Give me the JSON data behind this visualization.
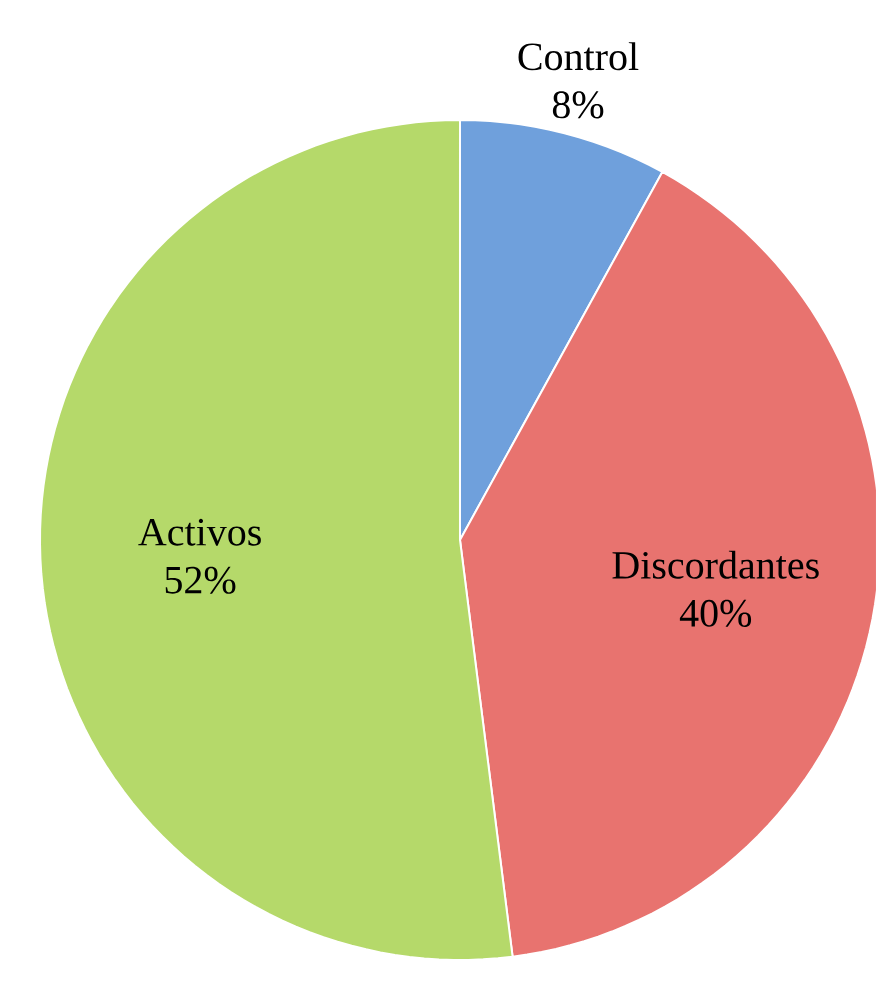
{
  "chart_data": {
    "type": "pie",
    "categories": [
      "Control",
      "Discordantes",
      "Activos"
    ],
    "values": [
      8,
      40,
      52
    ],
    "value_labels": [
      "8%",
      "40%",
      "52%"
    ],
    "colors": [
      "#6fa0dc",
      "#e8736f",
      "#b5d96a"
    ]
  }
}
